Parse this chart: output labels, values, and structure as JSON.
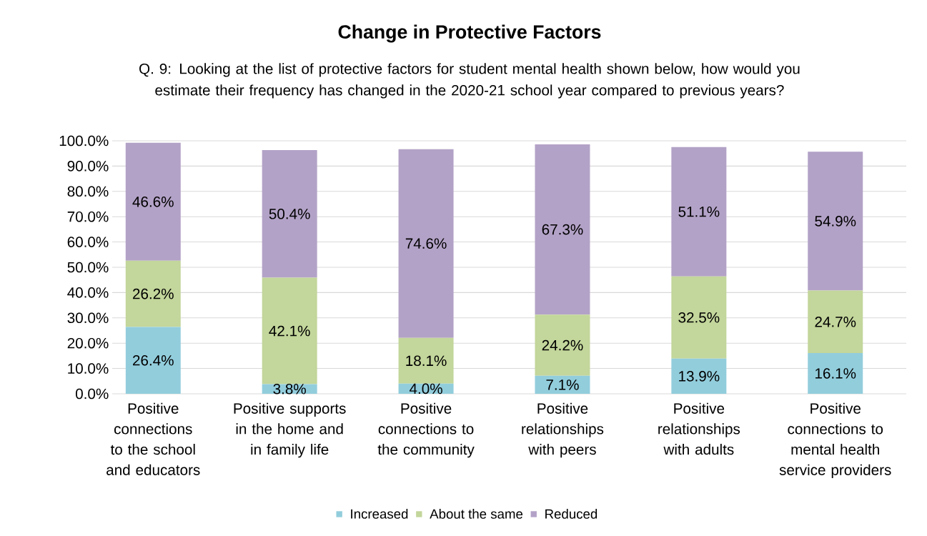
{
  "chart_data": {
    "type": "bar",
    "stacked": true,
    "title": "Change in Protective Factors",
    "subtitle": "Q. 9: Looking at the list of protective factors for student mental health shown below, how would you estimate their frequency has changed in the 2020-21 school year compared to previous years?",
    "categories": [
      "Positive connections to the school and educators",
      "Positive supports in the home and in family life",
      "Positive connections to the community",
      "Positive relationships with peers",
      "Positive relationships with adults",
      "Positive connections to mental health service providers"
    ],
    "series": [
      {
        "name": "Increased",
        "color": "#92cddc",
        "values": [
          26.4,
          3.8,
          4.0,
          7.1,
          13.9,
          16.1
        ],
        "value_labels": [
          "26.4%",
          "3.8%",
          "4.0%",
          "7.1%",
          "13.9%",
          "16.1%"
        ]
      },
      {
        "name": "About the same",
        "color": "#c3d69b",
        "values": [
          26.2,
          42.1,
          18.1,
          24.2,
          32.5,
          24.7
        ],
        "value_labels": [
          "26.2%",
          "42.1%",
          "18.1%",
          "24.2%",
          "32.5%",
          "24.7%"
        ]
      },
      {
        "name": "Reduced",
        "color": "#b3a2c7",
        "values": [
          46.6,
          50.4,
          74.6,
          67.3,
          51.1,
          54.9
        ],
        "value_labels": [
          "46.6%",
          "50.4%",
          "74.6%",
          "67.3%",
          "51.1%",
          "54.9%"
        ]
      }
    ],
    "ylim": [
      0,
      100
    ],
    "yticks": [
      {
        "value": 0,
        "label": "0.0%"
      },
      {
        "value": 10,
        "label": "10.0%"
      },
      {
        "value": 20,
        "label": "20.0%"
      },
      {
        "value": 30,
        "label": "30.0%"
      },
      {
        "value": 40,
        "label": "40.0%"
      },
      {
        "value": 50,
        "label": "50.0%"
      },
      {
        "value": 60,
        "label": "60.0%"
      },
      {
        "value": 70,
        "label": "70.0%"
      },
      {
        "value": 80,
        "label": "80.0%"
      },
      {
        "value": 90,
        "label": "90.0%"
      },
      {
        "value": 100,
        "label": "100.0%"
      }
    ],
    "grid": "y",
    "legend": "bottom"
  }
}
